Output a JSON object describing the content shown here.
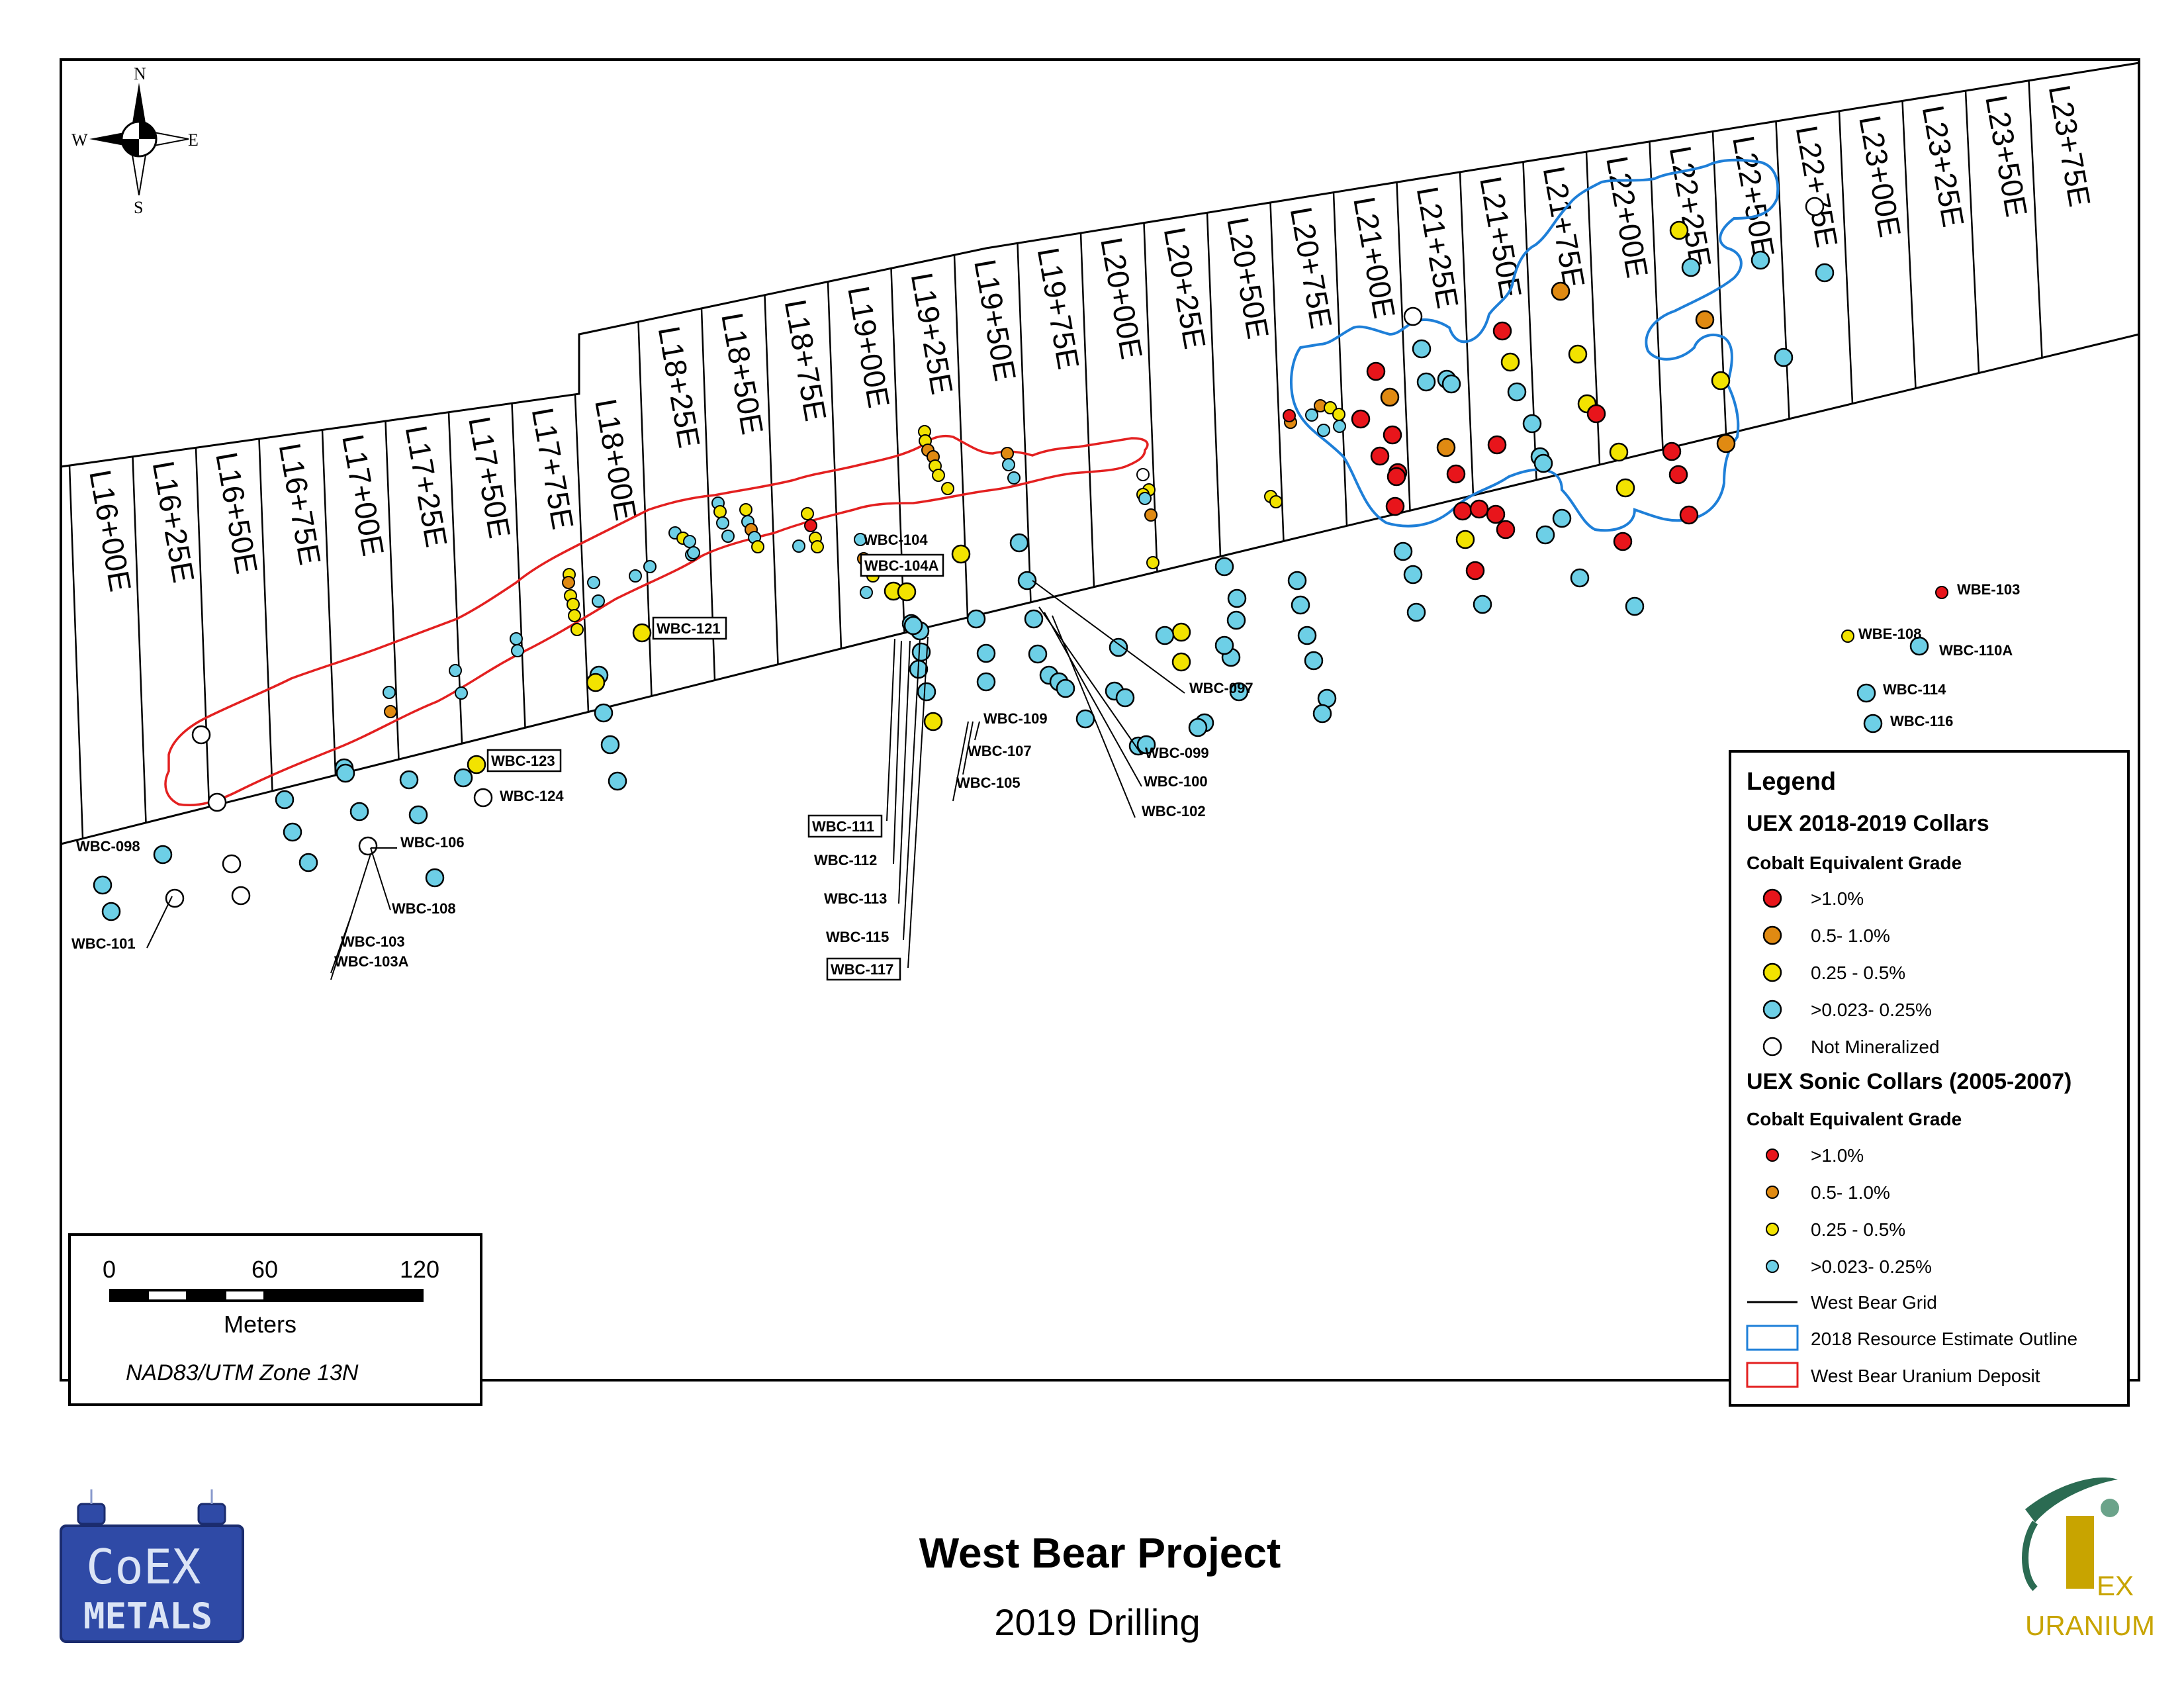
{
  "title": "West Bear Project",
  "subtitle": "2019 Drilling",
  "compass": {
    "n": "N",
    "s": "S",
    "e": "E",
    "w": "W"
  },
  "grid_lines": [
    "L16+00E",
    "L16+25E",
    "L16+50E",
    "L16+75E",
    "L17+00E",
    "L17+25E",
    "L17+50E",
    "L17+75E",
    "L18+00E",
    "L18+25E",
    "L18+50E",
    "L18+75E",
    "L19+00E",
    "L19+25E",
    "L19+50E",
    "L19+75E",
    "L20+00E",
    "L20+25E",
    "L20+50E",
    "L20+75E",
    "L21+00E",
    "L21+25E",
    "L21+50E",
    "L21+75E",
    "L22+00E",
    "L22+25E",
    "L22+50E",
    "L22+75E",
    "L23+00E",
    "L23+25E",
    "L23+50E",
    "L23+75E"
  ],
  "hole_labels": [
    {
      "text": "WBC-098",
      "boxed": false
    },
    {
      "text": "WBC-101",
      "boxed": false
    },
    {
      "text": "WBC-103",
      "boxed": false
    },
    {
      "text": "WBC-103A",
      "boxed": false
    },
    {
      "text": "WBC-106",
      "boxed": false
    },
    {
      "text": "WBC-108",
      "boxed": false
    },
    {
      "text": "WBC-123",
      "boxed": true
    },
    {
      "text": "WBC-124",
      "boxed": false
    },
    {
      "text": "WBC-121",
      "boxed": true
    },
    {
      "text": "WBC-104",
      "boxed": false
    },
    {
      "text": "WBC-104A",
      "boxed": true
    },
    {
      "text": "WBC-111",
      "boxed": true
    },
    {
      "text": "WBC-112",
      "boxed": false
    },
    {
      "text": "WBC-113",
      "boxed": false
    },
    {
      "text": "WBC-115",
      "boxed": false
    },
    {
      "text": "WBC-117",
      "boxed": true
    },
    {
      "text": "WBC-109",
      "boxed": false
    },
    {
      "text": "WBC-107",
      "boxed": false
    },
    {
      "text": "WBC-105",
      "boxed": false
    },
    {
      "text": "WBC-097",
      "boxed": false
    },
    {
      "text": "WBC-099",
      "boxed": false
    },
    {
      "text": "WBC-100",
      "boxed": false
    },
    {
      "text": "WBC-102",
      "boxed": false
    },
    {
      "text": "WBE-103",
      "boxed": false
    },
    {
      "text": "WBE-108",
      "boxed": false
    },
    {
      "text": "WBC-110A",
      "boxed": false
    },
    {
      "text": "WBC-114",
      "boxed": false
    },
    {
      "text": "WBC-116",
      "boxed": false
    }
  ],
  "legend": {
    "title": "Legend",
    "section1": "UEX 2018-2019 Collars",
    "sub1": "Cobalt Equivalent Grade",
    "items1": [
      ">1.0%",
      "0.5- 1.0%",
      "0.25 - 0.5%",
      ">0.023- 0.25%",
      "Not Mineralized"
    ],
    "section2": "UEX Sonic Collars (2005-2007)",
    "sub2": "Cobalt Equivalent Grade",
    "items2": [
      ">1.0%",
      "0.5- 1.0%",
      "0.25 - 0.5%",
      ">0.023- 0.25%"
    ],
    "lines": [
      "West Bear Grid",
      "2018 Resource Estimate Outline",
      "West Bear Uranium Deposit"
    ]
  },
  "grade_colors": {
    "high": "#e8151b",
    "mid_high": "#e08a12",
    "mid": "#f2e300",
    "low": "#6dcfe6",
    "none": "#ffffff"
  },
  "outline_colors": {
    "resource": "#1e7fd8",
    "deposit": "#e32020"
  },
  "scale": {
    "tick0": "0",
    "tick1": "60",
    "tick2": "120",
    "unit": "Meters",
    "projection": "NAD83/UTM Zone 13N"
  },
  "logos": {
    "coex_line1": "CoEX",
    "coex_line2": "METALS",
    "uex_line1": "EX",
    "uex_line2": "URANIUM"
  }
}
